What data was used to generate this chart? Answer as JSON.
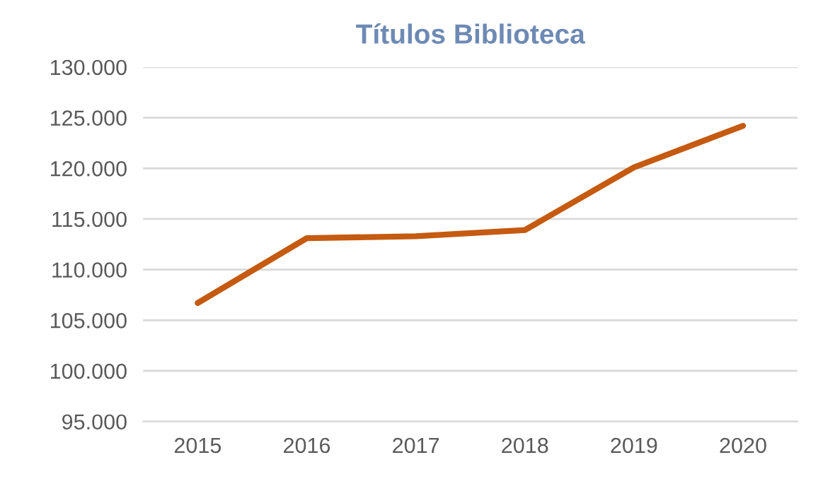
{
  "chart_data": {
    "type": "line",
    "title": "Títulos Biblioteca",
    "categories": [
      "2015",
      "2016",
      "2017",
      "2018",
      "2019",
      "2020"
    ],
    "series": [
      {
        "color": "#c55a11",
        "values": [
          106700,
          113100,
          113300,
          113900,
          120100,
          124200
        ]
      }
    ],
    "ylim": [
      95000,
      130000
    ],
    "yticks": [
      {
        "value": 95000,
        "label": "95.000"
      },
      {
        "value": 100000,
        "label": "100.000"
      },
      {
        "value": 105000,
        "label": "105.000"
      },
      {
        "value": 110000,
        "label": "110.000"
      },
      {
        "value": 115000,
        "label": "115.000"
      },
      {
        "value": 120000,
        "label": "120.000"
      },
      {
        "value": 125000,
        "label": "125.000"
      },
      {
        "value": 130000,
        "label": "130.000"
      }
    ],
    "grid": "y",
    "marker": "none",
    "line_style": "solid"
  }
}
